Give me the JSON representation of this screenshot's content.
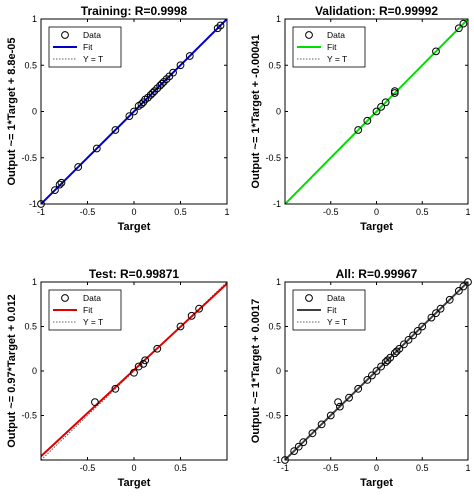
{
  "colors": {
    "data_marker": "#000000",
    "ideal_line": "#606060"
  },
  "chart_data": [
    {
      "type": "scatter",
      "title": "Training: R=0.9998",
      "xlabel": "Target",
      "ylabel": "Output ~= 1*Target + 8.8e-05",
      "xlim": [
        -1,
        1
      ],
      "ylim": [
        -1,
        1
      ],
      "xticks": [
        "-1",
        "-0.5",
        "0",
        "0.5",
        "1"
      ],
      "yticks": [
        "-1",
        "-0.5",
        "0",
        "0.5",
        "1"
      ],
      "legend": {
        "placement": "top-left",
        "entries": [
          "Data",
          "Fit",
          "Y = T"
        ]
      },
      "fit_color": "#0000cc",
      "fit": {
        "slope": 1,
        "intercept": 8.8e-05
      },
      "points": [
        [
          -1,
          -1
        ],
        [
          -0.85,
          -0.85
        ],
        [
          -0.8,
          -0.79
        ],
        [
          -0.78,
          -0.77
        ],
        [
          -0.6,
          -0.6
        ],
        [
          -0.4,
          -0.4
        ],
        [
          -0.2,
          -0.2
        ],
        [
          -0.05,
          -0.05
        ],
        [
          0.0,
          0.0
        ],
        [
          0.05,
          0.06
        ],
        [
          0.08,
          0.08
        ],
        [
          0.1,
          0.1
        ],
        [
          0.12,
          0.13
        ],
        [
          0.15,
          0.15
        ],
        [
          0.18,
          0.18
        ],
        [
          0.2,
          0.2
        ],
        [
          0.22,
          0.22
        ],
        [
          0.25,
          0.25
        ],
        [
          0.28,
          0.28
        ],
        [
          0.3,
          0.3
        ],
        [
          0.32,
          0.32
        ],
        [
          0.35,
          0.35
        ],
        [
          0.38,
          0.38
        ],
        [
          0.42,
          0.42
        ],
        [
          0.5,
          0.5
        ],
        [
          0.6,
          0.6
        ],
        [
          0.9,
          0.9
        ],
        [
          0.93,
          0.93
        ]
      ]
    },
    {
      "type": "scatter",
      "title": "Validation: R=0.99992",
      "xlabel": "Target",
      "ylabel": "Output ~= 1*Target + -0.00041",
      "xlim": [
        -1,
        1
      ],
      "ylim": [
        -1,
        1
      ],
      "xticks": [
        "-0.5",
        "0",
        "0.5",
        "1"
      ],
      "yticks": [
        "-1",
        "-0.5",
        "0",
        "0.5",
        "1"
      ],
      "legend": {
        "placement": "top-left",
        "entries": [
          "Data",
          "Fit",
          "Y = T"
        ]
      },
      "fit_color": "#00dd00",
      "fit": {
        "slope": 1,
        "intercept": -0.00041
      },
      "points": [
        [
          -0.2,
          -0.2
        ],
        [
          -0.1,
          -0.1
        ],
        [
          0.0,
          0.0
        ],
        [
          0.05,
          0.05
        ],
        [
          0.1,
          0.1
        ],
        [
          0.2,
          0.2
        ],
        [
          0.2,
          0.22
        ],
        [
          0.65,
          0.65
        ],
        [
          0.9,
          0.9
        ],
        [
          0.95,
          0.95
        ]
      ]
    },
    {
      "type": "scatter",
      "title": "Test: R=0.99871",
      "xlabel": "Target",
      "ylabel": "Output ~= 0.97*Target + 0.012",
      "xlim": [
        -1,
        1
      ],
      "ylim": [
        -1,
        1
      ],
      "xticks": [
        "-0.5",
        "0",
        "0.5"
      ],
      "yticks": [
        "-0.5",
        "0",
        "0.5",
        "1"
      ],
      "legend": {
        "placement": "top-left",
        "entries": [
          "Data",
          "Fit",
          "Y = T"
        ]
      },
      "fit_color": "#e00000",
      "fit": {
        "slope": 0.97,
        "intercept": 0.012
      },
      "points": [
        [
          -0.42,
          -0.35
        ],
        [
          -0.2,
          -0.2
        ],
        [
          0.0,
          -0.02
        ],
        [
          0.05,
          0.05
        ],
        [
          0.1,
          0.08
        ],
        [
          0.12,
          0.12
        ],
        [
          0.25,
          0.25
        ],
        [
          0.5,
          0.5
        ],
        [
          0.62,
          0.62
        ],
        [
          0.7,
          0.7
        ]
      ]
    },
    {
      "type": "scatter",
      "title": "All: R=0.99967",
      "xlabel": "Target",
      "ylabel": "Output ~= 1*Target + 0.0017",
      "xlim": [
        -1,
        1
      ],
      "ylim": [
        -1,
        1
      ],
      "xticks": [
        "-1",
        "-0.5",
        "0",
        "0.5",
        "1"
      ],
      "yticks": [
        "-1",
        "-0.5",
        "0",
        "0.5",
        "1"
      ],
      "legend": {
        "placement": "top-left",
        "entries": [
          "Data",
          "Fit",
          "Y = T"
        ]
      },
      "fit_color": "#404040",
      "fit": {
        "slope": 1,
        "intercept": 0.0017
      },
      "points": [
        [
          -1,
          -1
        ],
        [
          -0.9,
          -0.9
        ],
        [
          -0.85,
          -0.85
        ],
        [
          -0.8,
          -0.8
        ],
        [
          -0.7,
          -0.7
        ],
        [
          -0.6,
          -0.6
        ],
        [
          -0.5,
          -0.5
        ],
        [
          -0.42,
          -0.35
        ],
        [
          -0.4,
          -0.4
        ],
        [
          -0.3,
          -0.3
        ],
        [
          -0.2,
          -0.2
        ],
        [
          -0.1,
          -0.1
        ],
        [
          -0.05,
          -0.05
        ],
        [
          0.0,
          0.0
        ],
        [
          0.05,
          0.05
        ],
        [
          0.1,
          0.1
        ],
        [
          0.12,
          0.12
        ],
        [
          0.15,
          0.15
        ],
        [
          0.2,
          0.2
        ],
        [
          0.22,
          0.22
        ],
        [
          0.25,
          0.25
        ],
        [
          0.3,
          0.3
        ],
        [
          0.35,
          0.35
        ],
        [
          0.4,
          0.4
        ],
        [
          0.45,
          0.45
        ],
        [
          0.5,
          0.5
        ],
        [
          0.6,
          0.6
        ],
        [
          0.65,
          0.65
        ],
        [
          0.7,
          0.7
        ],
        [
          0.8,
          0.8
        ],
        [
          0.9,
          0.9
        ],
        [
          0.95,
          0.95
        ],
        [
          1,
          1
        ]
      ]
    }
  ]
}
